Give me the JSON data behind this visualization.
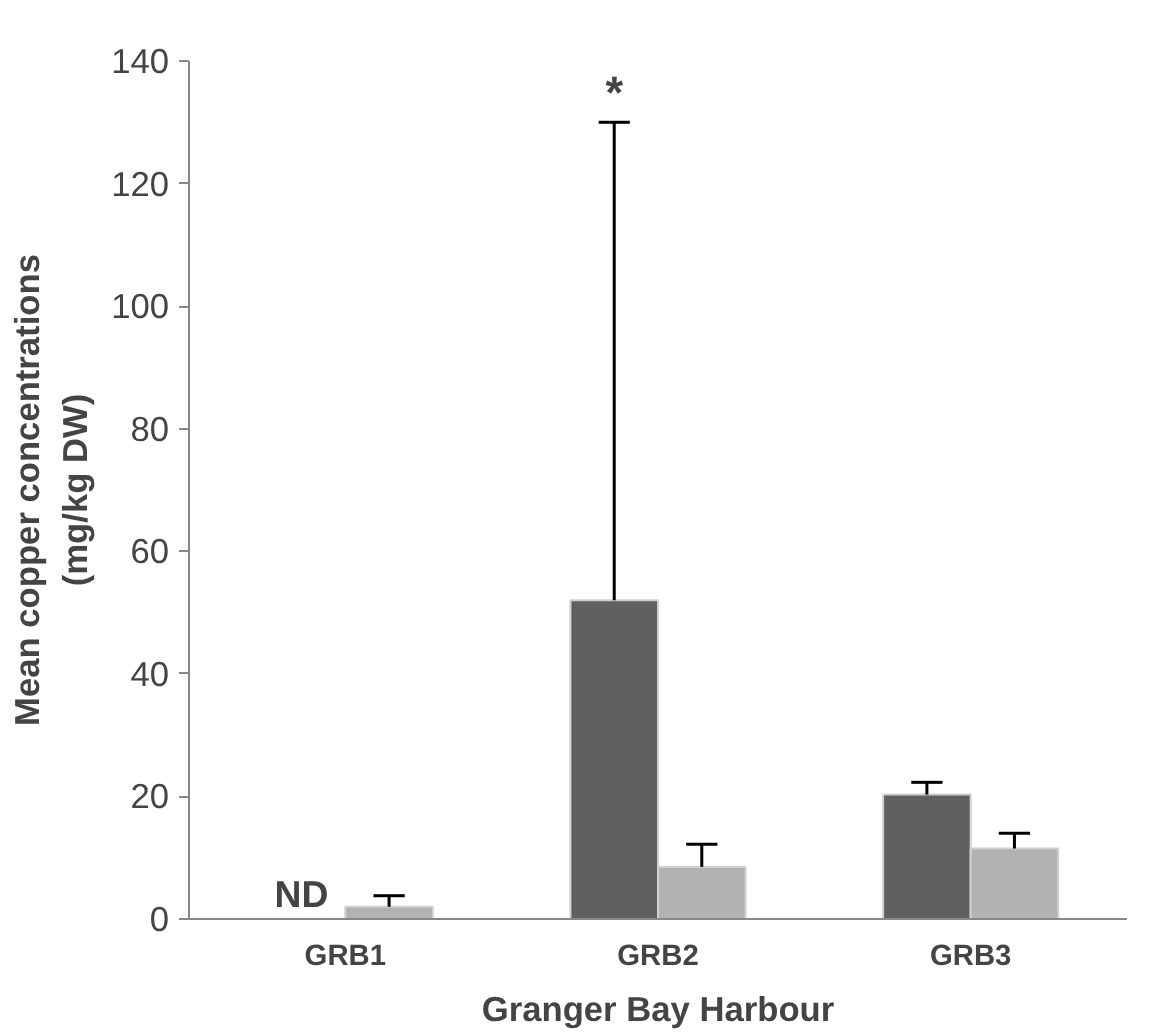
{
  "chart_data": {
    "type": "bar",
    "xlabel": "Granger Bay Harbour",
    "ylabel": "Mean copper concentrations\n(mg/kg DW)",
    "categories": [
      "GRB1",
      "GRB2",
      "GRB3"
    ],
    "series": [
      {
        "color": "#606060",
        "values": [
          null,
          52,
          20.3
        ],
        "errors": [
          null,
          [
            52,
            130
          ],
          [
            20.3,
            22.3
          ]
        ]
      },
      {
        "color": "#b2b2b2",
        "values": [
          2,
          8.5,
          11.5
        ],
        "errors": [
          [
            2,
            3.8
          ],
          [
            8.5,
            12.2
          ],
          [
            11.5,
            14
          ]
        ]
      }
    ],
    "ylim": [
      0,
      140
    ],
    "yticks": [
      0,
      20,
      40,
      60,
      80,
      100,
      120,
      140
    ],
    "grid": false,
    "annotations": [
      {
        "text": "ND",
        "x": "GRB1",
        "y": 0
      },
      "*"
    ]
  }
}
